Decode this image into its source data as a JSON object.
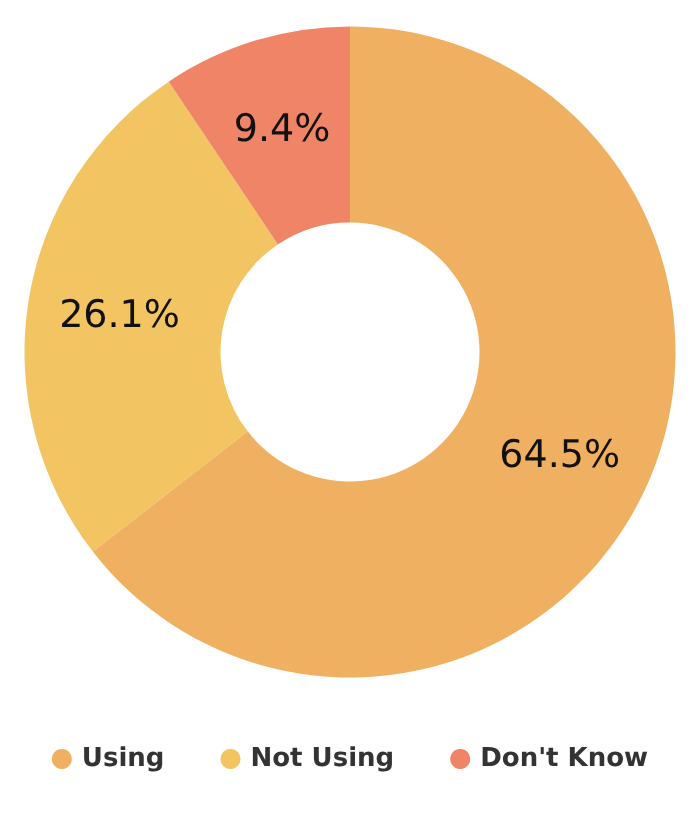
{
  "chart_data": {
    "type": "donut",
    "categories": [
      "Using",
      "Not Using",
      "Don't Know"
    ],
    "values": [
      64.5,
      26.1,
      9.4
    ],
    "colors": [
      "#f0b062",
      "#f2c462",
      "#f08466"
    ],
    "value_labels": [
      "64.5%",
      "26.1%",
      "9.4%"
    ],
    "legend": "bottom"
  }
}
